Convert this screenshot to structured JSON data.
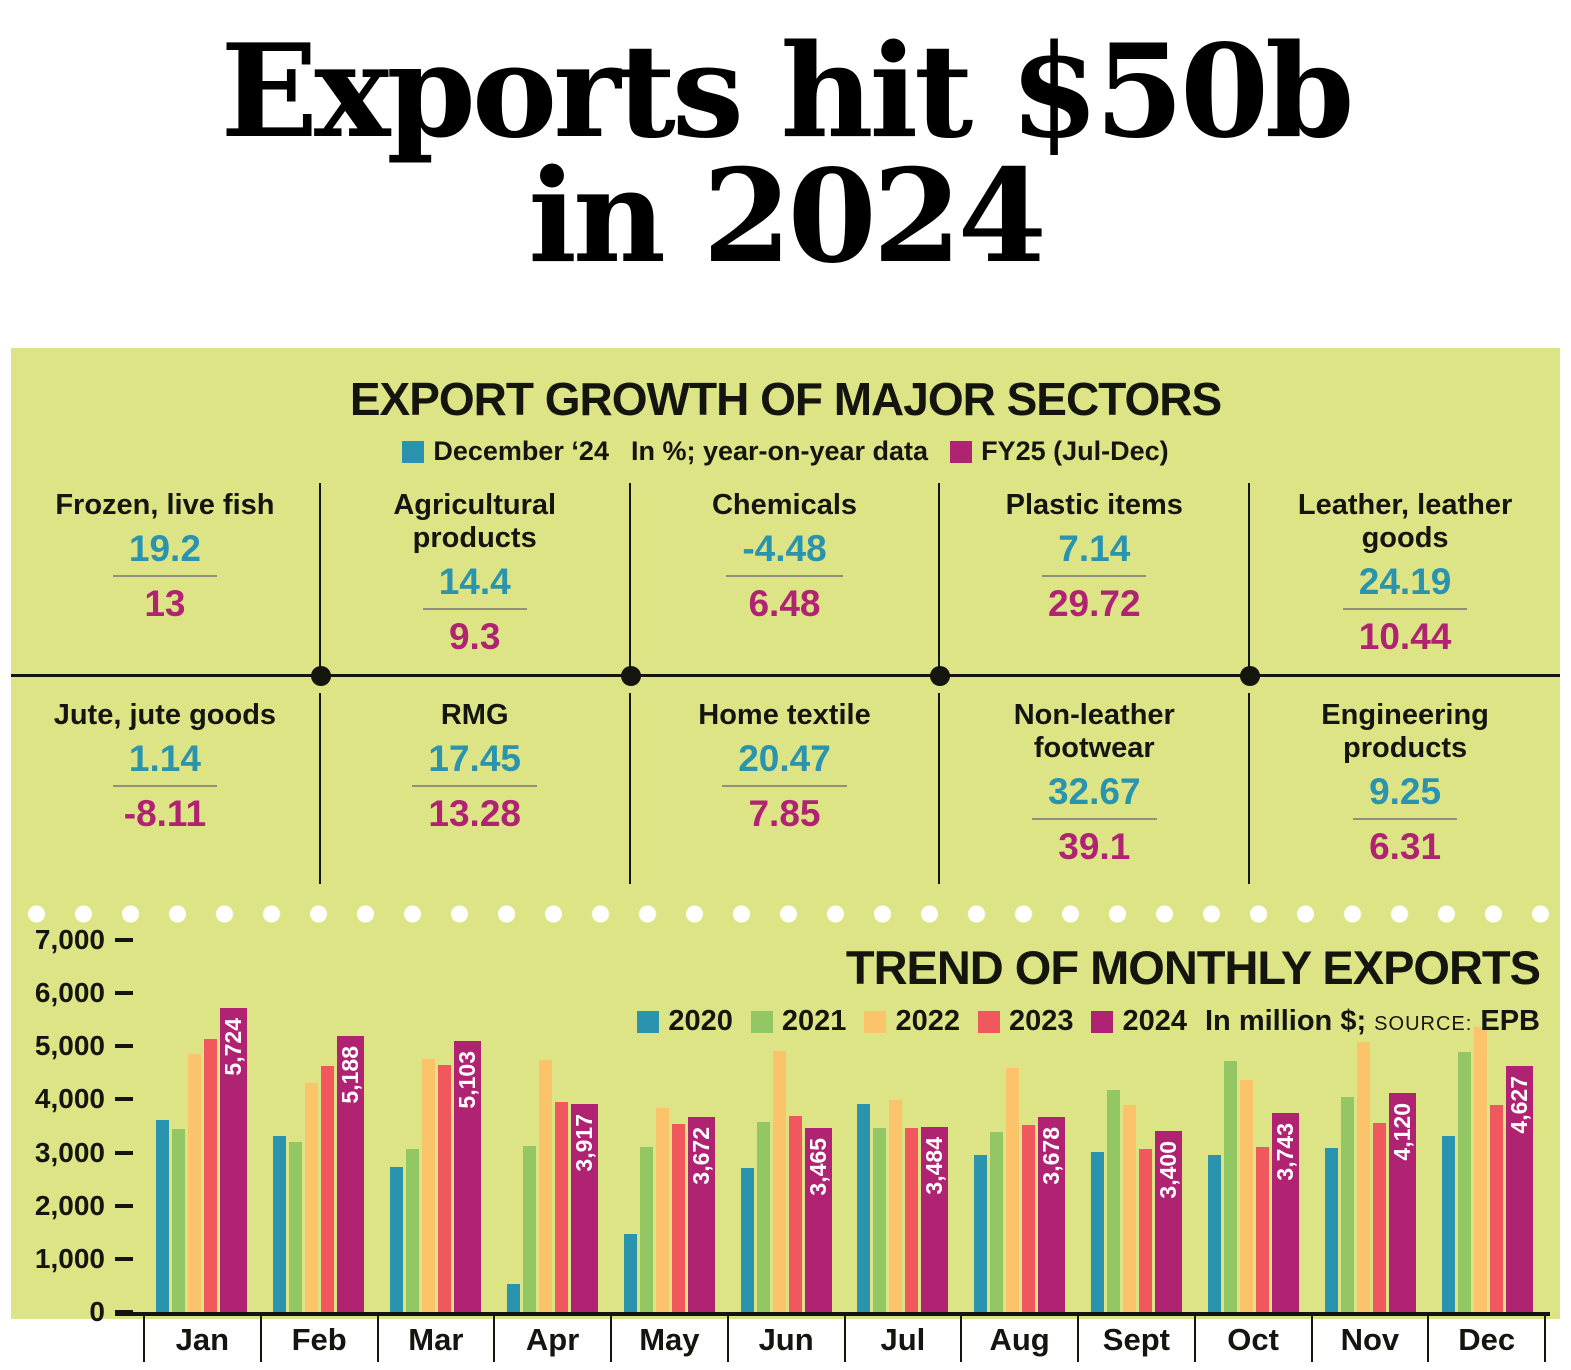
{
  "headline": {
    "line1": "Exports hit $50b",
    "line2": "in 2024"
  },
  "colors": {
    "teal": "#2a93ad",
    "magenta": "#b02272",
    "green": "#93c764",
    "orange": "#fbc36a",
    "red": "#f0585e",
    "panel": "#dde486"
  },
  "sectors": {
    "title": "EXPORT GROWTH OF MAJOR SECTORS",
    "legend": {
      "dec": "December ‘24",
      "note": "In %; year-on-year data",
      "fy": "FY25 (Jul-Dec)"
    },
    "rows": [
      [
        {
          "name": "Frozen, live fish",
          "dec": "19.2",
          "fy": "13"
        },
        {
          "name": "Agricultural products",
          "dec": "14.4",
          "fy": "9.3"
        },
        {
          "name": "Chemicals",
          "dec": "-4.48",
          "fy": "6.48"
        },
        {
          "name": "Plastic items",
          "dec": "7.14",
          "fy": "29.72"
        },
        {
          "name": "Leather, leather goods",
          "dec": "24.19",
          "fy": "10.44"
        }
      ],
      [
        {
          "name": "Jute, jute goods",
          "dec": "1.14",
          "fy": "-8.11"
        },
        {
          "name": "RMG",
          "dec": "17.45",
          "fy": "13.28"
        },
        {
          "name": "Home textile",
          "dec": "20.47",
          "fy": "7.85"
        },
        {
          "name": "Non-leather footwear",
          "dec": "32.67",
          "fy": "39.1"
        },
        {
          "name": "Engineering products",
          "dec": "9.25",
          "fy": "6.31"
        }
      ]
    ]
  },
  "chart_data": {
    "type": "bar",
    "title": "TREND OF MONTHLY EXPORTS",
    "unit_note": "In million $;",
    "source_label": "SOURCE:",
    "source": "EPB",
    "ylim": [
      0,
      7000
    ],
    "ytick_step": 1000,
    "categories": [
      "Jan",
      "Feb",
      "Mar",
      "Apr",
      "May",
      "Jun",
      "Jul",
      "Aug",
      "Sept",
      "Oct",
      "Nov",
      "Dec"
    ],
    "series": [
      {
        "name": "2020",
        "color": "#2a93ad",
        "values": [
          3610,
          3320,
          2730,
          520,
          1465,
          2710,
          3910,
          2960,
          3010,
          2950,
          3090,
          3310
        ]
      },
      {
        "name": "2021",
        "color": "#93c764",
        "values": [
          3440,
          3190,
          3070,
          3130,
          3100,
          3580,
          3470,
          3380,
          4170,
          4730,
          4040,
          4900
        ]
      },
      {
        "name": "2022",
        "color": "#fbc36a",
        "values": [
          4850,
          4300,
          4760,
          4740,
          3830,
          4910,
          3980,
          4600,
          3900,
          4360,
          5090,
          5370
        ]
      },
      {
        "name": "2023",
        "color": "#f0585e",
        "values": [
          5140,
          4630,
          4640,
          3950,
          3530,
          3680,
          3470,
          3520,
          3060,
          3110,
          3560,
          3900
        ]
      },
      {
        "name": "2024",
        "color": "#b02272",
        "values": [
          5724,
          5188,
          5103,
          3917,
          3672,
          3465,
          3484,
          3678,
          3400,
          3743,
          4120,
          4627
        ],
        "labeled": true
      }
    ]
  }
}
